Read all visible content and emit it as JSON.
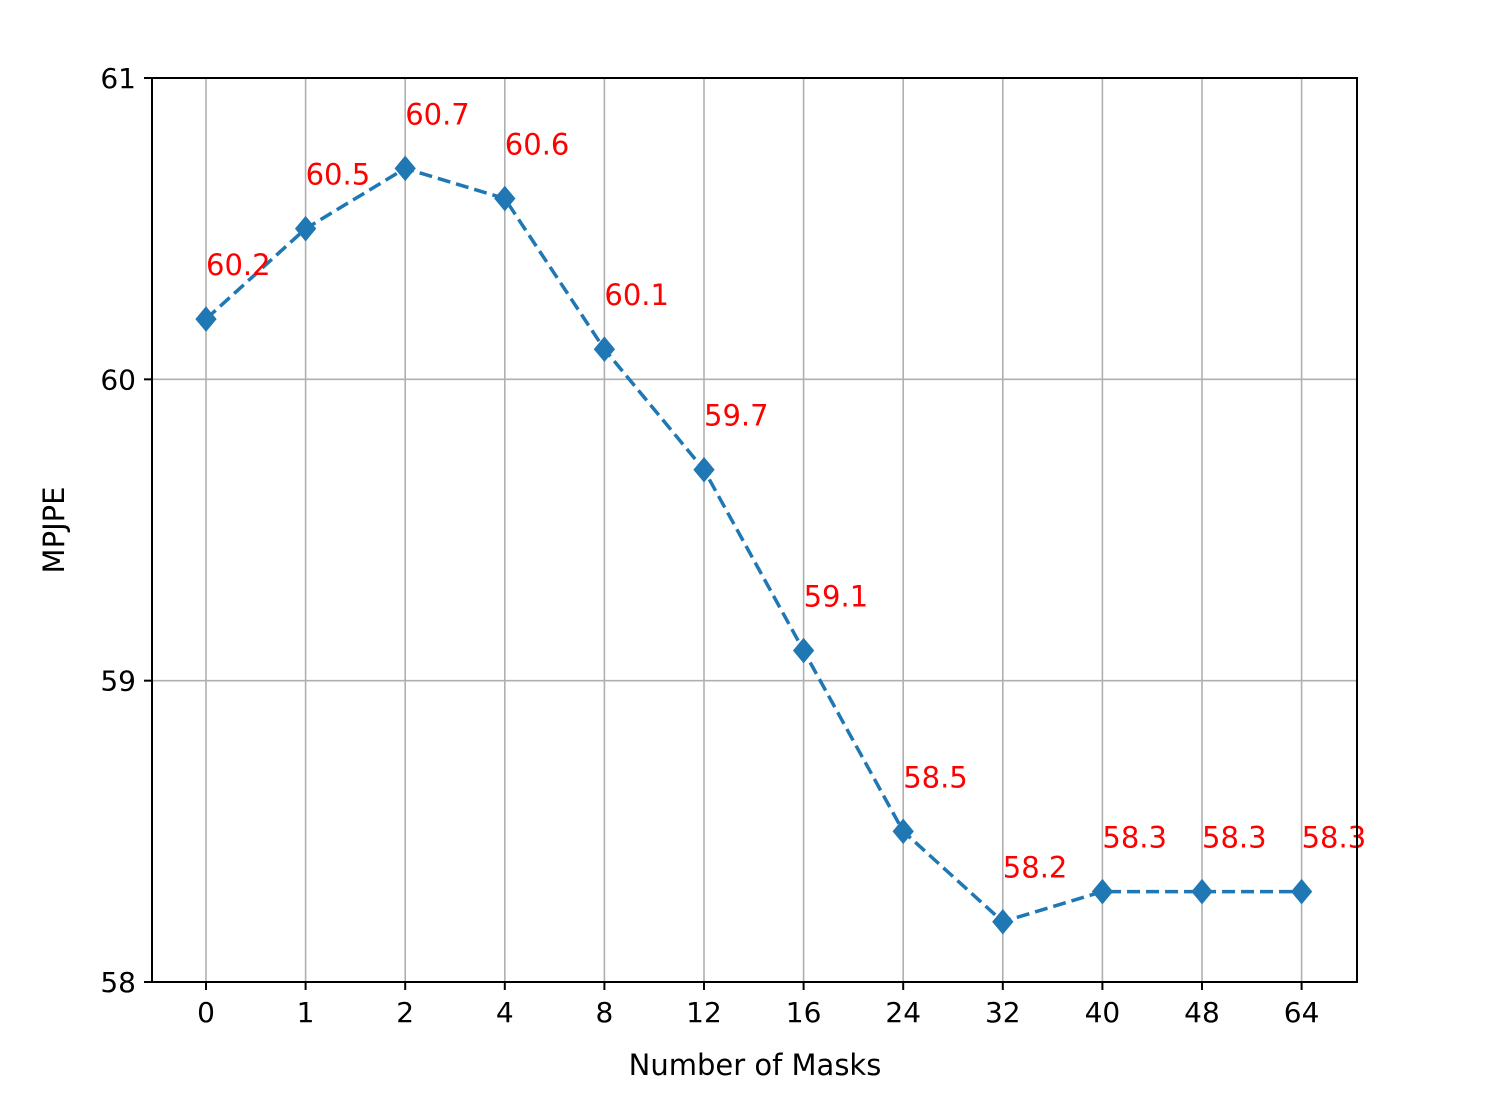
{
  "chart_data": {
    "type": "line",
    "title": "",
    "xlabel": "Number of Masks",
    "ylabel": "MPJPE",
    "categories": [
      "0",
      "1",
      "2",
      "4",
      "8",
      "12",
      "16",
      "24",
      "32",
      "40",
      "48",
      "64"
    ],
    "series": [
      {
        "values": [
          60.2,
          60.5,
          60.7,
          60.6,
          60.1,
          59.7,
          59.1,
          58.5,
          58.2,
          58.3,
          58.3,
          58.3
        ],
        "color": "#1f77b4",
        "line_style": "dashed",
        "marker": "diamond"
      }
    ],
    "data_labels": [
      "60.2",
      "60.5",
      "60.7",
      "60.6",
      "60.1",
      "59.7",
      "59.1",
      "58.5",
      "58.2",
      "58.3",
      "58.3",
      "58.3"
    ],
    "data_label_color": "#ff0000",
    "ylim": [
      58,
      61
    ],
    "yticks": [
      "58",
      "59",
      "60",
      "61"
    ],
    "grid": true,
    "legend": "none"
  }
}
